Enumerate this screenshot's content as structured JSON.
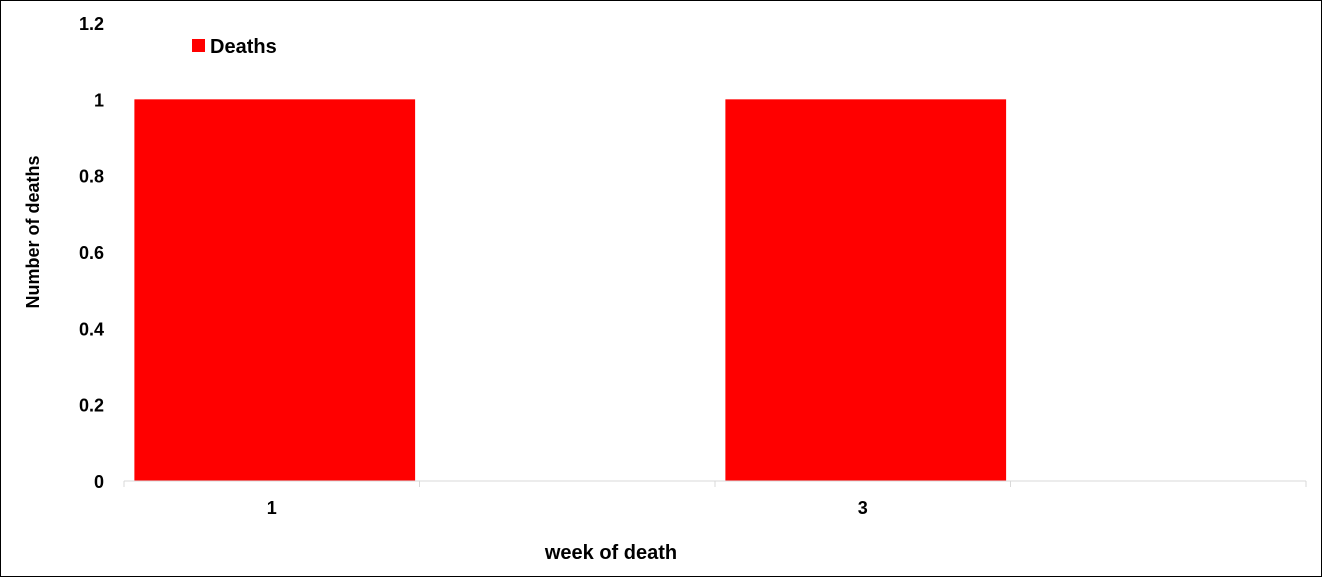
{
  "chart_data": {
    "type": "bar",
    "categories": [
      "1",
      "3"
    ],
    "series": [
      {
        "name": "Deaths",
        "values": [
          1,
          1
        ],
        "color": "#ff0000"
      }
    ],
    "xlabel": "week of death",
    "ylabel": "Number of deaths",
    "ylim": [
      0,
      1.2
    ],
    "yticks": [
      "0",
      "0.2",
      "0.4",
      "0.6",
      "0.8",
      "1",
      "1.2"
    ],
    "grid": false,
    "legend_position": "top-left"
  }
}
